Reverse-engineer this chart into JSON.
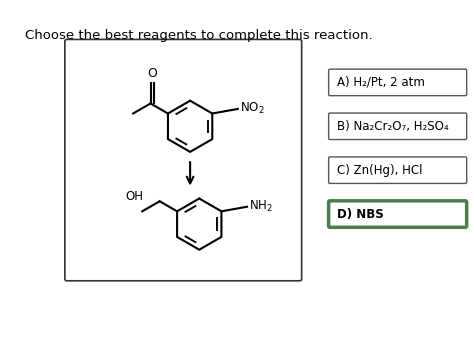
{
  "title": "Choose the best reagents to complete this reaction.",
  "title_fontsize": 9.5,
  "bg_color": "#ffffff",
  "choices": [
    {
      "label": "A) H₂/Pt, 2 atm",
      "bold": false,
      "border_color": "#555555",
      "bg": "#ffffff",
      "text_color": "#000000"
    },
    {
      "label": "B) Na₂Cr₂O₇, H₂SO₄",
      "bold": false,
      "border_color": "#555555",
      "bg": "#ffffff",
      "text_color": "#000000"
    },
    {
      "label": "C) Zn(Hg), HCl",
      "bold": false,
      "border_color": "#555555",
      "bg": "#ffffff",
      "text_color": "#000000"
    },
    {
      "label": "D) NBS",
      "bold": true,
      "border_color": "#4a7c4e",
      "bg": "#ffffff",
      "text_color": "#000000"
    }
  ]
}
